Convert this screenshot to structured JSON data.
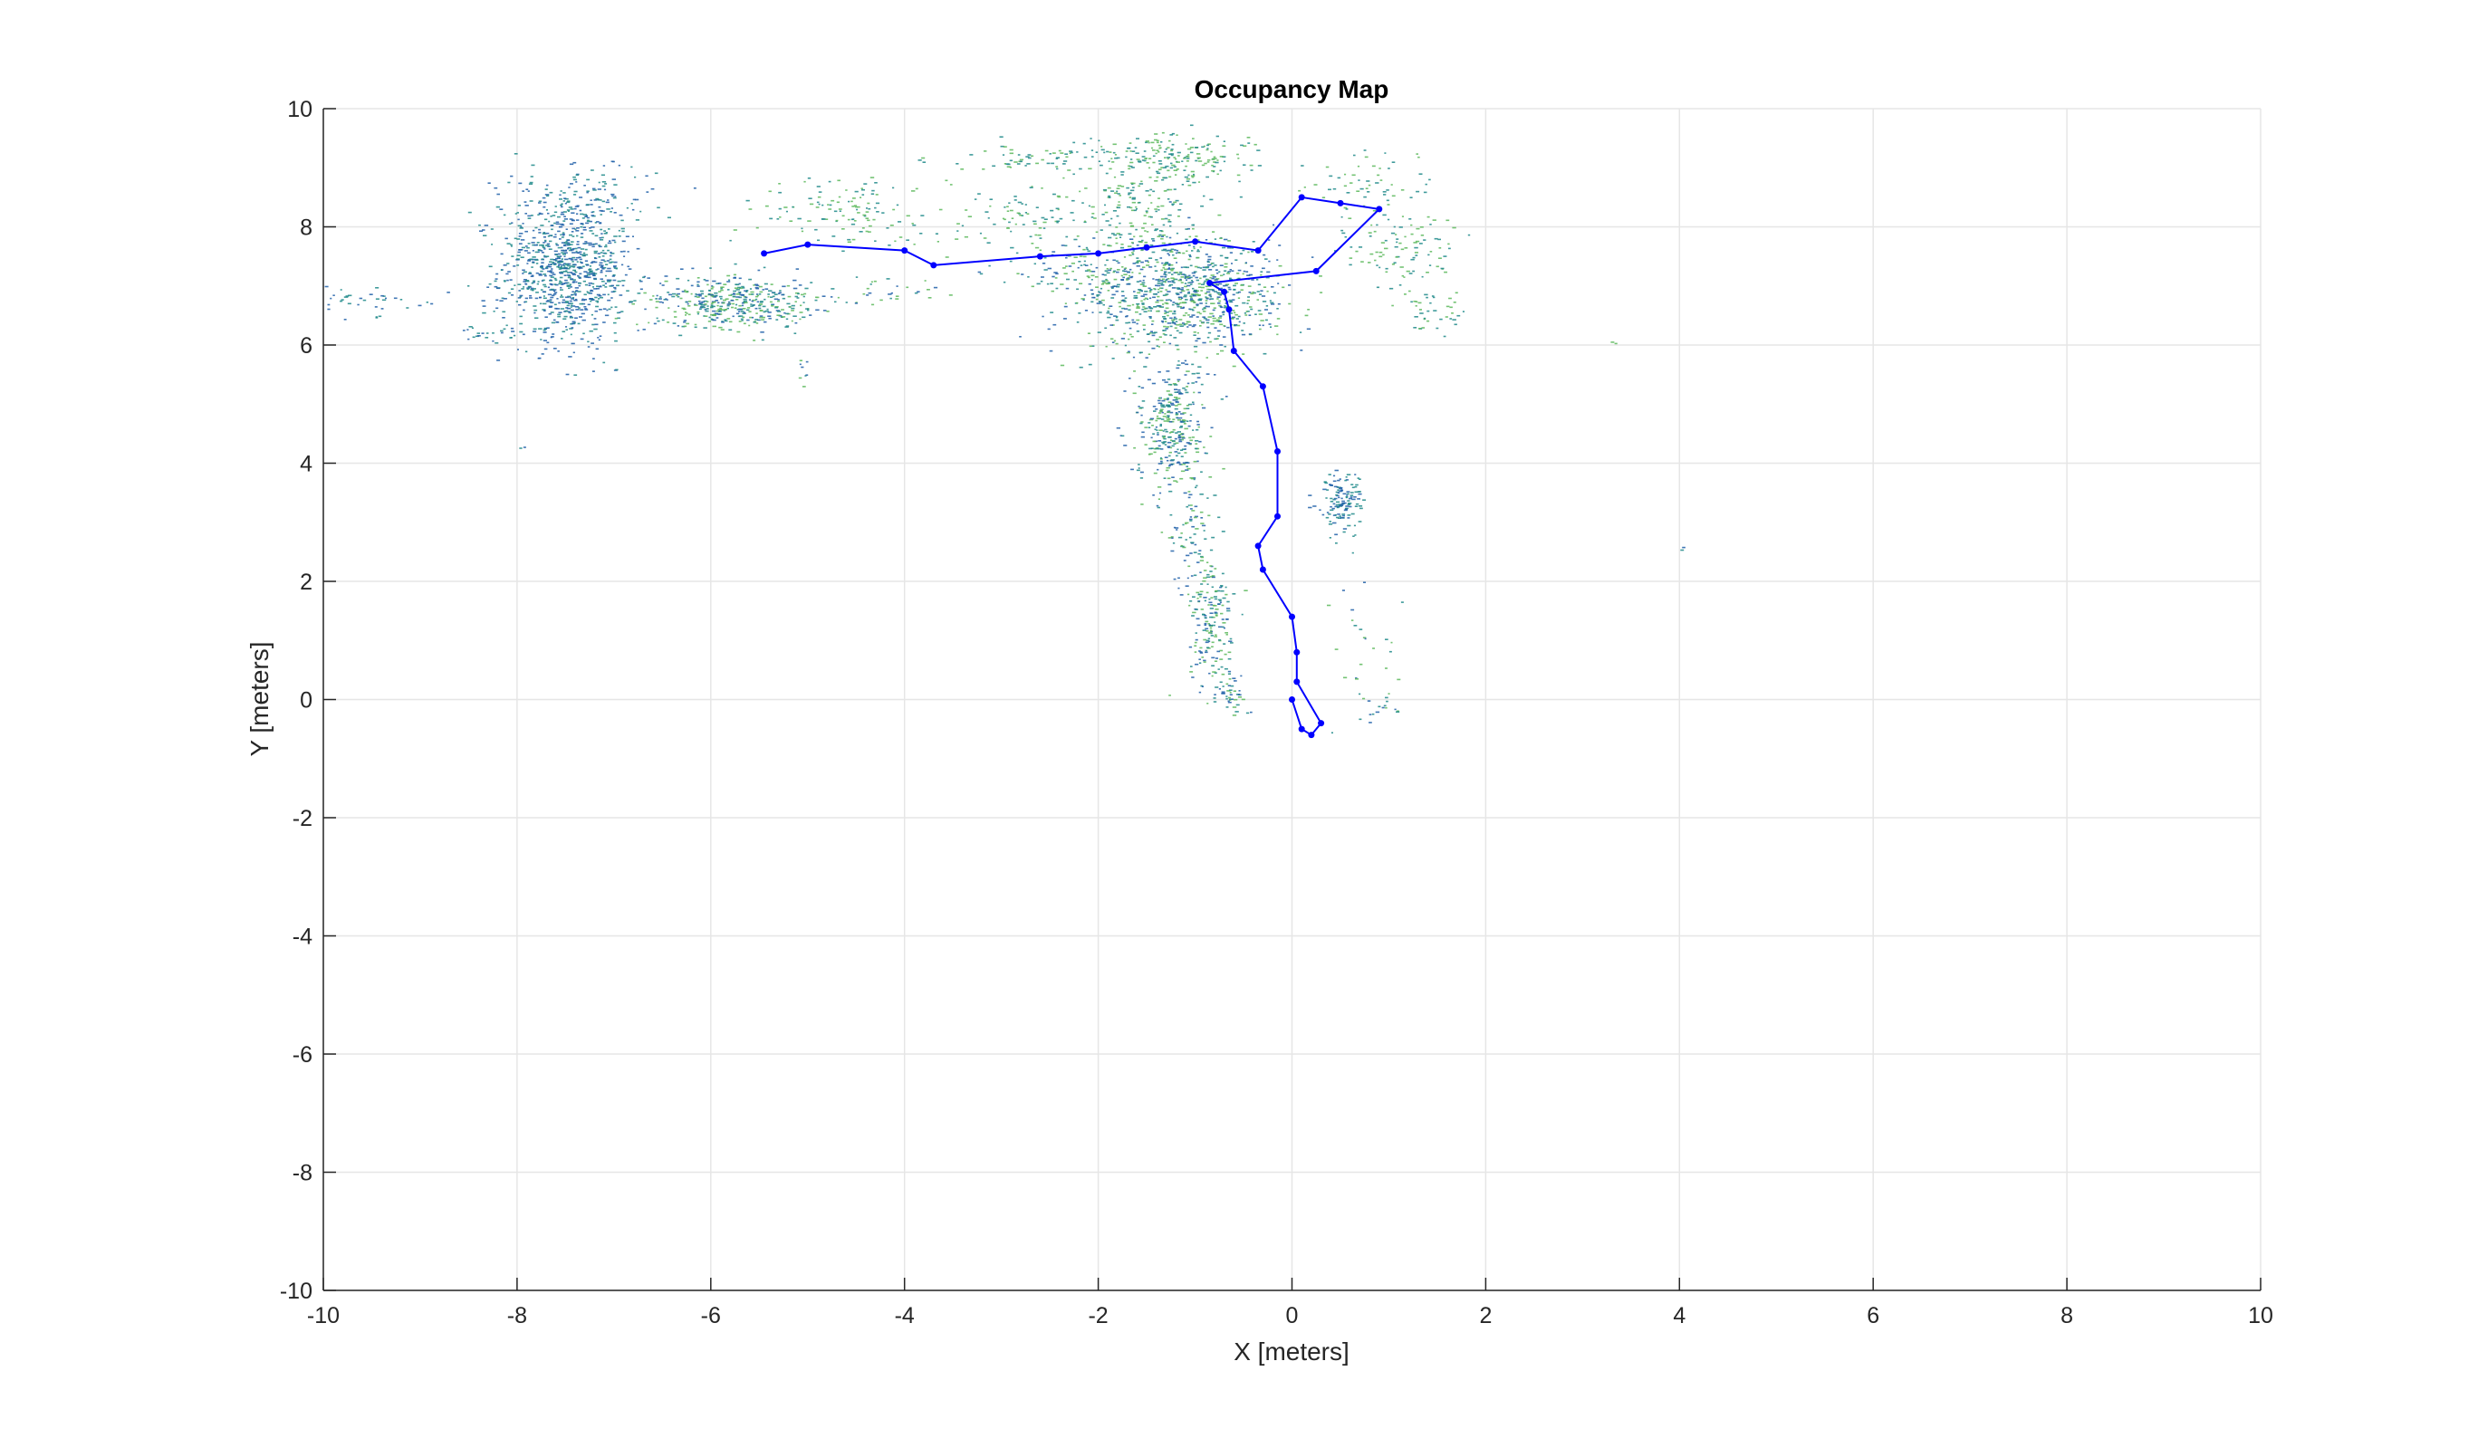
{
  "figure": {
    "background": "#ffffff"
  },
  "chart_data": {
    "type": "scatter",
    "title": "Occupancy Map",
    "xlabel": "X [meters]",
    "ylabel": "Y [meters]",
    "xlim": [
      -10,
      10
    ],
    "ylim": [
      -10,
      10
    ],
    "xticks": [
      -10,
      -8,
      -6,
      -4,
      -2,
      0,
      2,
      4,
      6,
      8,
      10
    ],
    "yticks": [
      -10,
      -8,
      -6,
      -4,
      -2,
      0,
      2,
      4,
      6,
      8,
      10
    ],
    "xtick_labels": [
      "-10",
      "-8",
      "-6",
      "-4",
      "-2",
      "0",
      "2",
      "4",
      "6",
      "8",
      "10"
    ],
    "ytick_labels": [
      "-10",
      "-8",
      "-6",
      "-4",
      "-2",
      "0",
      "2",
      "4",
      "6",
      "8",
      "10"
    ],
    "grid": true,
    "colors": {
      "trajectory": "#0000ff",
      "grid": "#e6e6e6",
      "axis": "#262626",
      "points_dark": "#1f5fa8",
      "points_mid": "#1f8a8a",
      "points_light": "#5cb85c"
    },
    "series": [
      {
        "type": "line",
        "marker": "dot",
        "x": [
          0.0,
          0.1,
          0.2,
          0.3,
          0.05,
          0.05,
          0.0,
          -0.3,
          -0.35,
          -0.15,
          -0.15,
          -0.3,
          -0.6,
          -0.65,
          -0.7,
          -0.85,
          0.25,
          0.9,
          0.5,
          0.1,
          -0.35,
          -1.0,
          -1.5,
          -2.0,
          -2.6,
          -3.7,
          -4.0,
          -5.0,
          -5.45
        ],
        "y": [
          0.0,
          -0.5,
          -0.6,
          -0.4,
          0.3,
          0.8,
          1.4,
          2.2,
          2.6,
          3.1,
          4.2,
          5.3,
          5.9,
          6.6,
          6.9,
          7.05,
          7.25,
          8.3,
          8.4,
          8.5,
          7.6,
          7.75,
          7.65,
          7.55,
          7.5,
          7.35,
          7.6,
          7.7,
          7.55
        ]
      },
      {
        "type": "scatter",
        "clusters": [
          {
            "cx": -7.5,
            "cy": 7.3,
            "sx": 0.35,
            "sy": 0.65,
            "n": 900,
            "shade": "dark"
          },
          {
            "cx": -7.3,
            "cy": 8.6,
            "sx": 0.45,
            "sy": 0.25,
            "n": 80,
            "shade": "dark"
          },
          {
            "cx": -5.8,
            "cy": 6.75,
            "sx": 0.45,
            "sy": 0.22,
            "n": 420,
            "shade": "mid"
          },
          {
            "cx": -4.6,
            "cy": 8.3,
            "sx": 0.45,
            "sy": 0.3,
            "n": 120,
            "shade": "light"
          },
          {
            "cx": -9.6,
            "cy": 6.75,
            "sx": 0.3,
            "sy": 0.12,
            "n": 40,
            "shade": "dark"
          },
          {
            "cx": -8.4,
            "cy": 6.2,
            "sx": 0.2,
            "sy": 0.08,
            "n": 20,
            "shade": "dark"
          },
          {
            "cx": -2.8,
            "cy": 8.2,
            "sx": 0.5,
            "sy": 0.25,
            "n": 90,
            "shade": "light"
          },
          {
            "cx": -2.6,
            "cy": 9.2,
            "sx": 0.5,
            "sy": 0.15,
            "n": 70,
            "shade": "light"
          },
          {
            "cx": -2.2,
            "cy": 7.3,
            "sx": 0.5,
            "sy": 0.25,
            "n": 80,
            "shade": "mid"
          },
          {
            "cx": -1.2,
            "cy": 9.2,
            "sx": 0.4,
            "sy": 0.2,
            "n": 160,
            "shade": "light"
          },
          {
            "cx": -1.2,
            "cy": 6.9,
            "sx": 0.5,
            "sy": 0.5,
            "n": 900,
            "shade": "mid"
          },
          {
            "cx": -1.55,
            "cy": 8.4,
            "sx": 0.3,
            "sy": 0.4,
            "n": 160,
            "shade": "light"
          },
          {
            "cx": -1.25,
            "cy": 4.6,
            "sx": 0.18,
            "sy": 0.55,
            "n": 320,
            "shade": "mid"
          },
          {
            "cx": -1.05,
            "cy": 3.0,
            "sx": 0.12,
            "sy": 0.5,
            "n": 70,
            "shade": "mid"
          },
          {
            "cx": -0.85,
            "cy": 1.3,
            "sx": 0.12,
            "sy": 0.55,
            "n": 190,
            "shade": "mid"
          },
          {
            "cx": -0.65,
            "cy": 0.1,
            "sx": 0.1,
            "sy": 0.18,
            "n": 40,
            "shade": "mid"
          },
          {
            "cx": 0.5,
            "cy": 3.35,
            "sx": 0.12,
            "sy": 0.25,
            "n": 130,
            "shade": "dark"
          },
          {
            "cx": 0.8,
            "cy": 8.7,
            "sx": 0.35,
            "sy": 0.3,
            "n": 60,
            "shade": "light"
          },
          {
            "cx": 1.1,
            "cy": 7.6,
            "sx": 0.3,
            "sy": 0.3,
            "n": 90,
            "shade": "light"
          },
          {
            "cx": 1.45,
            "cy": 6.6,
            "sx": 0.2,
            "sy": 0.2,
            "n": 40,
            "shade": "light"
          },
          {
            "cx": 0.7,
            "cy": 1.0,
            "sx": 0.2,
            "sy": 0.6,
            "n": 25,
            "shade": "mid"
          },
          {
            "cx": 0.9,
            "cy": -0.1,
            "sx": 0.15,
            "sy": 0.1,
            "n": 15,
            "shade": "mid"
          },
          {
            "cx": -4.1,
            "cy": 6.9,
            "sx": 0.4,
            "sy": 0.15,
            "n": 30,
            "shade": "mid"
          },
          {
            "cx": -5.05,
            "cy": 5.6,
            "sx": 0.05,
            "sy": 0.15,
            "n": 8,
            "shade": "mid"
          },
          {
            "cx": 3.3,
            "cy": 6.05,
            "sx": 0.02,
            "sy": 0.02,
            "n": 2,
            "shade": "mid"
          },
          {
            "cx": 4.0,
            "cy": 2.55,
            "sx": 0.02,
            "sy": 0.02,
            "n": 2,
            "shade": "mid"
          },
          {
            "cx": -7.95,
            "cy": 4.25,
            "sx": 0.02,
            "sy": 0.02,
            "n": 2,
            "shade": "mid"
          },
          {
            "cx": -7.0,
            "cy": 5.6,
            "sx": 0.02,
            "sy": 0.02,
            "n": 2,
            "shade": "dark"
          }
        ]
      }
    ]
  }
}
